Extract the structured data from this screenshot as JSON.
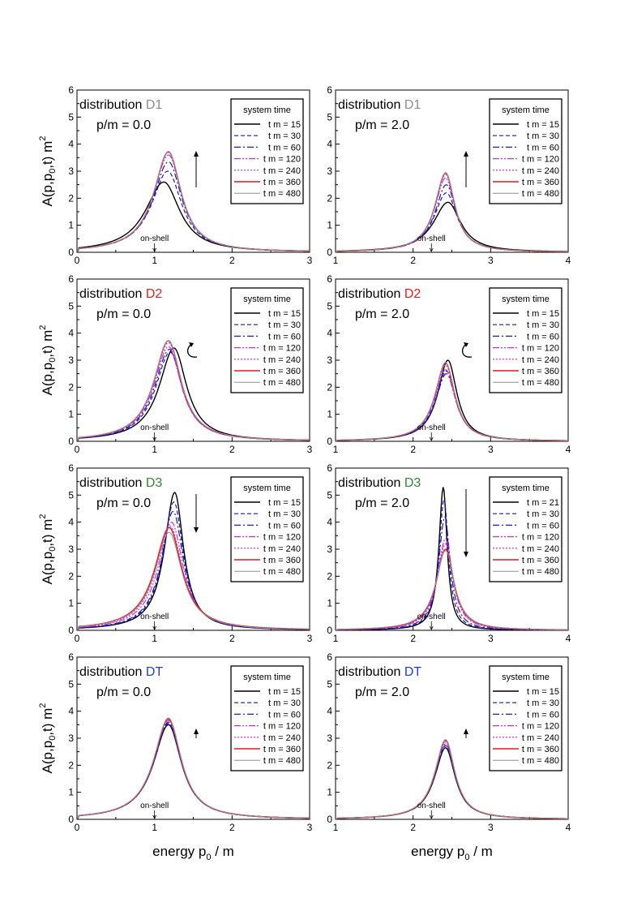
{
  "figure": {
    "ylabel": "A(p,p0,t) m2",
    "ylabel_parts": {
      "main": "A(p,p",
      "sub": "0",
      "mid": ",t)  m",
      "sup": "2"
    },
    "xlabel": "energy p0 / m",
    "xlabel_parts": {
      "main": "energy   p",
      "sub": "0",
      "tail": " / m"
    },
    "legend_title": "system time",
    "onshell_label": "on-shell",
    "distribution_prefix": "distribution",
    "colors": {
      "D1": "#8c8c8c",
      "D2": "#e8211d",
      "D3": "#2e8b2e",
      "DT": "#1f3fd6",
      "t15": "#000000",
      "t30": "#1a1aa8",
      "t60": "#1a1ad0",
      "t120": "#d030d0",
      "t240": "#e01ad0",
      "t360": "#e41a1a",
      "t480": "#909090"
    }
  },
  "chart_data": [
    {
      "type": "line",
      "distribution": "D1",
      "pm_label": "p/m = 0.0",
      "xlim": [
        0,
        3
      ],
      "xticks": [
        "0",
        "1",
        "2",
        "3"
      ],
      "ylim": [
        0,
        6
      ],
      "yticks": [
        "0",
        "1",
        "2",
        "3",
        "4",
        "5",
        "6"
      ],
      "onshell_x": 1.0,
      "arrow": "up",
      "series": [
        {
          "name": "t m =  15",
          "peak_x": 1.12,
          "peak_y": 2.6,
          "width": 0.25
        },
        {
          "name": "t m =  30",
          "peak_x": 1.17,
          "peak_y": 3.0,
          "width": 0.22
        },
        {
          "name": "t m =  60",
          "peak_x": 1.18,
          "peak_y": 3.35,
          "width": 0.21
        },
        {
          "name": "t m = 120",
          "peak_x": 1.18,
          "peak_y": 3.6,
          "width": 0.205
        },
        {
          "name": "t m = 240",
          "peak_x": 1.18,
          "peak_y": 3.7,
          "width": 0.2
        },
        {
          "name": "t m = 360",
          "peak_x": 1.18,
          "peak_y": 3.72,
          "width": 0.2
        },
        {
          "name": "t m = 480",
          "peak_x": 1.18,
          "peak_y": 3.73,
          "width": 0.2
        }
      ]
    },
    {
      "type": "line",
      "distribution": "D1",
      "pm_label": "p/m = 2.0",
      "xlim": [
        1,
        4
      ],
      "xticks": [
        "1",
        "2",
        "3",
        "4"
      ],
      "ylim": [
        0,
        6
      ],
      "yticks": [
        "0",
        "1",
        "2",
        "3",
        "4",
        "5",
        "6"
      ],
      "onshell_x": 2.236,
      "arrow": "up",
      "series": [
        {
          "name": "t m =  15",
          "peak_x": 2.45,
          "peak_y": 1.85,
          "width": 0.2
        },
        {
          "name": "t m =  30",
          "peak_x": 2.43,
          "peak_y": 2.2,
          "width": 0.17
        },
        {
          "name": "t m =  60",
          "peak_x": 2.43,
          "peak_y": 2.5,
          "width": 0.155
        },
        {
          "name": "t m = 120",
          "peak_x": 2.42,
          "peak_y": 2.75,
          "width": 0.15
        },
        {
          "name": "t m = 240",
          "peak_x": 2.42,
          "peak_y": 2.88,
          "width": 0.145
        },
        {
          "name": "t m = 360",
          "peak_x": 2.42,
          "peak_y": 2.93,
          "width": 0.145
        },
        {
          "name": "t m = 480",
          "peak_x": 2.42,
          "peak_y": 2.95,
          "width": 0.145
        }
      ]
    },
    {
      "type": "line",
      "distribution": "D2",
      "pm_label": "p/m = 0.0",
      "xlim": [
        0,
        3
      ],
      "xticks": [
        "0",
        "1",
        "2",
        "3"
      ],
      "ylim": [
        0,
        6
      ],
      "yticks": [
        "0",
        "1",
        "2",
        "3",
        "4",
        "5",
        "6"
      ],
      "onshell_x": 1.0,
      "arrow": "curl",
      "series": [
        {
          "name": "t m =  15",
          "peak_x": 1.25,
          "peak_y": 3.45,
          "width": 0.2
        },
        {
          "name": "t m =  30",
          "peak_x": 1.2,
          "peak_y": 3.3,
          "width": 0.2
        },
        {
          "name": "t m =  60",
          "peak_x": 1.19,
          "peak_y": 3.4,
          "width": 0.2
        },
        {
          "name": "t m = 120",
          "peak_x": 1.18,
          "peak_y": 3.5,
          "width": 0.2
        },
        {
          "name": "t m = 240",
          "peak_x": 1.18,
          "peak_y": 3.65,
          "width": 0.2
        },
        {
          "name": "t m = 360",
          "peak_x": 1.18,
          "peak_y": 3.72,
          "width": 0.2
        },
        {
          "name": "t m = 480",
          "peak_x": 1.18,
          "peak_y": 3.73,
          "width": 0.2
        }
      ]
    },
    {
      "type": "line",
      "distribution": "D2",
      "pm_label": "p/m = 2.0",
      "xlim": [
        1,
        4
      ],
      "xticks": [
        "1",
        "2",
        "3",
        "4"
      ],
      "ylim": [
        0,
        6
      ],
      "yticks": [
        "0",
        "1",
        "2",
        "3",
        "4",
        "5",
        "6"
      ],
      "onshell_x": 2.236,
      "arrow": "curl",
      "series": [
        {
          "name": "t m =  15",
          "peak_x": 2.45,
          "peak_y": 3.0,
          "width": 0.14
        },
        {
          "name": "t m =  30",
          "peak_x": 2.43,
          "peak_y": 2.6,
          "width": 0.15
        },
        {
          "name": "t m =  60",
          "peak_x": 2.43,
          "peak_y": 2.5,
          "width": 0.15
        },
        {
          "name": "t m = 120",
          "peak_x": 2.42,
          "peak_y": 2.65,
          "width": 0.15
        },
        {
          "name": "t m = 240",
          "peak_x": 2.42,
          "peak_y": 2.82,
          "width": 0.145
        },
        {
          "name": "t m = 360",
          "peak_x": 2.42,
          "peak_y": 2.9,
          "width": 0.145
        },
        {
          "name": "t m = 480",
          "peak_x": 2.42,
          "peak_y": 2.92,
          "width": 0.145
        }
      ]
    },
    {
      "type": "line",
      "distribution": "D3",
      "pm_label": "p/m = 0.0",
      "xlim": [
        0,
        3
      ],
      "xticks": [
        "0",
        "1",
        "2",
        "3"
      ],
      "ylim": [
        0,
        6
      ],
      "yticks": [
        "0",
        "1",
        "2",
        "3",
        "4",
        "5",
        "6"
      ],
      "onshell_x": 1.0,
      "arrow": "down",
      "series": [
        {
          "name": "t m =  15",
          "peak_x": 1.26,
          "peak_y": 5.1,
          "width": 0.14
        },
        {
          "name": "t m =  30",
          "peak_x": 1.25,
          "peak_y": 4.75,
          "width": 0.15
        },
        {
          "name": "t m =  60",
          "peak_x": 1.24,
          "peak_y": 4.4,
          "width": 0.16
        },
        {
          "name": "t m = 120",
          "peak_x": 1.22,
          "peak_y": 4.0,
          "width": 0.18
        },
        {
          "name": "t m = 240",
          "peak_x": 1.2,
          "peak_y": 3.85,
          "width": 0.19
        },
        {
          "name": "t m = 360",
          "peak_x": 1.19,
          "peak_y": 3.8,
          "width": 0.2
        },
        {
          "name": "t m = 480",
          "peak_x": 1.19,
          "peak_y": 3.62,
          "width": 0.2
        }
      ]
    },
    {
      "type": "line",
      "distribution": "D3",
      "pm_label": "p/m = 2.0",
      "xlim": [
        1,
        4
      ],
      "xticks": [
        "1",
        "2",
        "3",
        "4"
      ],
      "ylim": [
        0,
        6
      ],
      "yticks": [
        "0",
        "1",
        "2",
        "3",
        "4",
        "5",
        "6"
      ],
      "onshell_x": 2.236,
      "arrow": "down",
      "series": [
        {
          "name": "t m =  21",
          "peak_x": 2.39,
          "peak_y": 5.3,
          "width": 0.06
        },
        {
          "name": "t m =  30",
          "peak_x": 2.4,
          "peak_y": 4.85,
          "width": 0.07
        },
        {
          "name": "t m =  60",
          "peak_x": 2.41,
          "peak_y": 4.2,
          "width": 0.085
        },
        {
          "name": "t m = 120",
          "peak_x": 2.42,
          "peak_y": 3.4,
          "width": 0.11
        },
        {
          "name": "t m = 240",
          "peak_x": 2.42,
          "peak_y": 3.2,
          "width": 0.12
        },
        {
          "name": "t m = 360",
          "peak_x": 2.42,
          "peak_y": 3.0,
          "width": 0.13
        },
        {
          "name": "t m = 480",
          "peak_x": 2.42,
          "peak_y": 2.95,
          "width": 0.135
        }
      ]
    },
    {
      "type": "line",
      "distribution": "DT",
      "pm_label": "p/m = 0.0",
      "xlim": [
        0,
        3
      ],
      "xticks": [
        "0",
        "1",
        "2",
        "3"
      ],
      "ylim": [
        0,
        6
      ],
      "yticks": [
        "0",
        "1",
        "2",
        "3",
        "4",
        "5",
        "6"
      ],
      "onshell_x": 1.0,
      "arrow": "up",
      "series": [
        {
          "name": "t m =  15",
          "peak_x": 1.18,
          "peak_y": 3.5,
          "width": 0.205
        },
        {
          "name": "t m =  30",
          "peak_x": 1.18,
          "peak_y": 3.55,
          "width": 0.205
        },
        {
          "name": "t m =  60",
          "peak_x": 1.18,
          "peak_y": 3.6,
          "width": 0.2
        },
        {
          "name": "t m = 120",
          "peak_x": 1.18,
          "peak_y": 3.66,
          "width": 0.2
        },
        {
          "name": "t m = 240",
          "peak_x": 1.18,
          "peak_y": 3.7,
          "width": 0.2
        },
        {
          "name": "t m = 360",
          "peak_x": 1.18,
          "peak_y": 3.72,
          "width": 0.2
        },
        {
          "name": "t m = 480",
          "peak_x": 1.18,
          "peak_y": 3.75,
          "width": 0.2
        }
      ]
    },
    {
      "type": "line",
      "distribution": "DT",
      "pm_label": "p/m = 2.0",
      "xlim": [
        1,
        4
      ],
      "xticks": [
        "1",
        "2",
        "3",
        "4"
      ],
      "ylim": [
        0,
        6
      ],
      "yticks": [
        "0",
        "1",
        "2",
        "3",
        "4",
        "5",
        "6"
      ],
      "onshell_x": 2.236,
      "arrow": "up",
      "series": [
        {
          "name": "t m =  15",
          "peak_x": 2.42,
          "peak_y": 2.65,
          "width": 0.15
        },
        {
          "name": "t m =  30",
          "peak_x": 2.42,
          "peak_y": 2.72,
          "width": 0.15
        },
        {
          "name": "t m =  60",
          "peak_x": 2.42,
          "peak_y": 2.78,
          "width": 0.148
        },
        {
          "name": "t m = 120",
          "peak_x": 2.42,
          "peak_y": 2.85,
          "width": 0.146
        },
        {
          "name": "t m = 240",
          "peak_x": 2.42,
          "peak_y": 2.9,
          "width": 0.145
        },
        {
          "name": "t m = 360",
          "peak_x": 2.42,
          "peak_y": 2.93,
          "width": 0.145
        },
        {
          "name": "t m = 480",
          "peak_x": 2.42,
          "peak_y": 2.95,
          "width": 0.145
        }
      ]
    }
  ]
}
